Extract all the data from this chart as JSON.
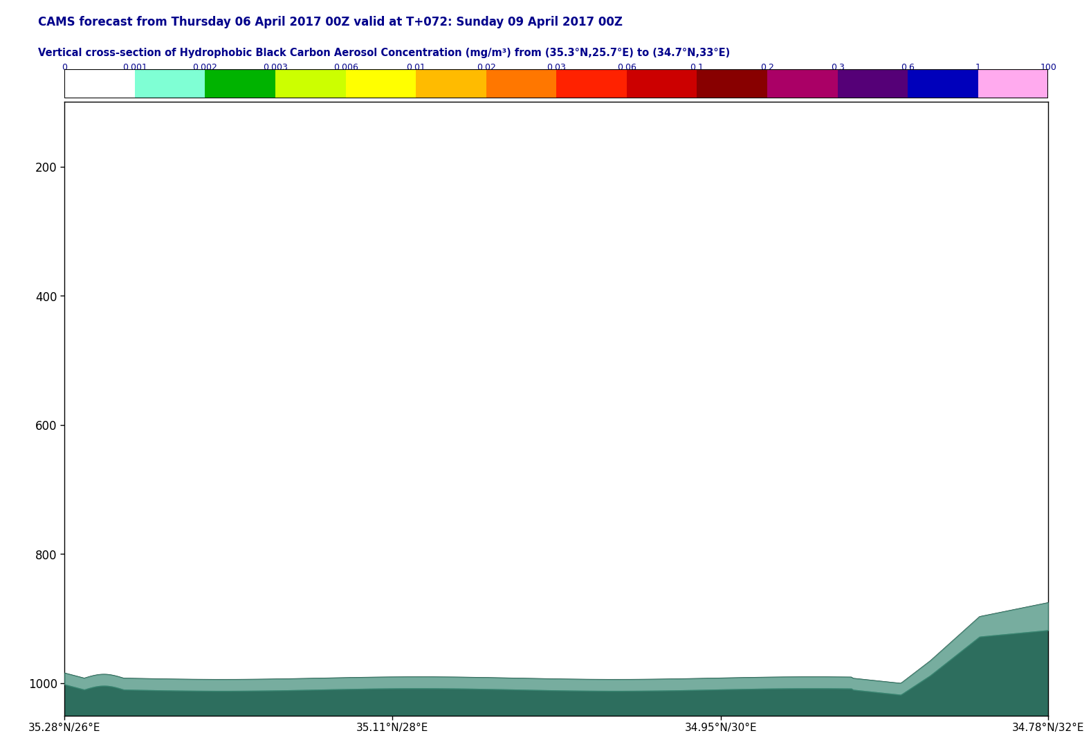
{
  "title_line1": "CAMS forecast from Thursday 06 April 2017 00Z valid at T+072: Sunday 09 April 2017 00Z",
  "title_line2": "Vertical cross-section of Hydrophobic Black Carbon Aerosol Concentration (mg/m³) from (35.3°N,25.7°E) to (34.7°N,33°E)",
  "title_color": "#00008B",
  "colorbar_labels": [
    "0",
    "0.001",
    "0.002",
    "0.003",
    "0.006",
    "0.01",
    "0.02",
    "0.03",
    "0.06",
    "0.1",
    "0.2",
    "0.3",
    "0.6",
    "1",
    "100"
  ],
  "colorbar_colors": [
    "#ffffff",
    "#7fffd4",
    "#00b300",
    "#ccff00",
    "#ffff00",
    "#ffbb00",
    "#ff7700",
    "#ff2200",
    "#cc0000",
    "#880000",
    "#aa0066",
    "#550077",
    "#0000bb",
    "#ffaaee"
  ],
  "ylim_min": 100,
  "ylim_max": 1050,
  "yticks": [
    200,
    400,
    600,
    800,
    1000
  ],
  "xtick_labels": [
    "35.28°N/26°E",
    "35.11°N/28°E",
    "34.95°N/30°E",
    "34.78°N/32°E"
  ],
  "xtick_positions": [
    0.0,
    0.333,
    0.667,
    1.0
  ],
  "surface_color_dark": "#2d6e5e",
  "surface_color_light": "#3d8a76",
  "background_color": "#ffffff"
}
